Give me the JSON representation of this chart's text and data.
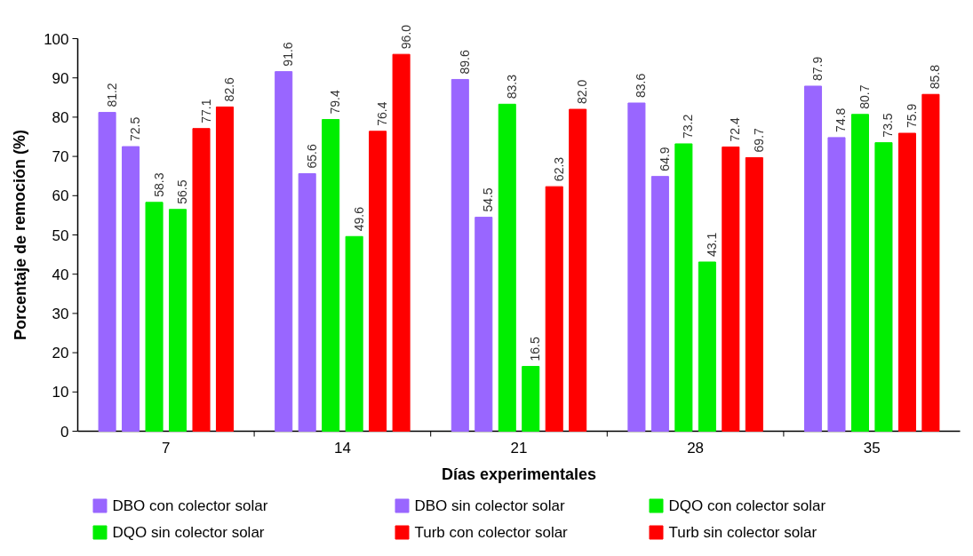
{
  "chart_data": {
    "type": "bar",
    "xlabel": "Días experimentales",
    "ylabel": "Porcentaje de remoción (%)",
    "categories": [
      "7",
      "14",
      "21",
      "28",
      "35"
    ],
    "series": [
      {
        "name": "DBO con colector solar",
        "color": "#9966ff",
        "values": [
          81.2,
          91.6,
          89.6,
          83.6,
          87.9
        ],
        "value_labels": [
          "81.2",
          "91.6",
          "89.6",
          "83.6",
          "87.9"
        ]
      },
      {
        "name": "DBO sin colector solar",
        "color": "#9966ff",
        "values": [
          72.5,
          65.6,
          54.5,
          64.9,
          74.8
        ],
        "value_labels": [
          "72.5",
          "65.6",
          "54.5",
          "64.9",
          "74.8"
        ]
      },
      {
        "name": "DQO con colector solar",
        "color": "#00ee00",
        "values": [
          58.3,
          79.4,
          83.3,
          73.2,
          80.7
        ],
        "value_labels": [
          "58.3",
          "79.4",
          "83.3",
          "73.2",
          "80.7"
        ]
      },
      {
        "name": "DQO sin colector solar",
        "color": "#00ee00",
        "values": [
          56.5,
          49.6,
          16.5,
          43.1,
          73.5
        ],
        "value_labels": [
          "56.5",
          "49.6",
          "16.5",
          "43.1",
          "73.5"
        ]
      },
      {
        "name": "Turb con  colector solar",
        "color": "#ff0000",
        "values": [
          77.1,
          76.4,
          62.3,
          72.4,
          75.9
        ],
        "value_labels": [
          "77.1",
          "76.4",
          "62.3",
          "72.4",
          "75.9"
        ]
      },
      {
        "name": "Turb sin  colector solar",
        "color": "#ff0000",
        "values": [
          82.6,
          96.0,
          82.0,
          69.7,
          85.8
        ],
        "value_labels": [
          "82.6",
          "96.0",
          "82.0",
          "69.7",
          "85.8"
        ]
      }
    ],
    "ylim": [
      0,
      100
    ],
    "yticks": [
      0,
      10,
      20,
      30,
      40,
      50,
      60,
      70,
      80,
      90,
      100
    ],
    "grid": false,
    "legend": "bottom"
  }
}
